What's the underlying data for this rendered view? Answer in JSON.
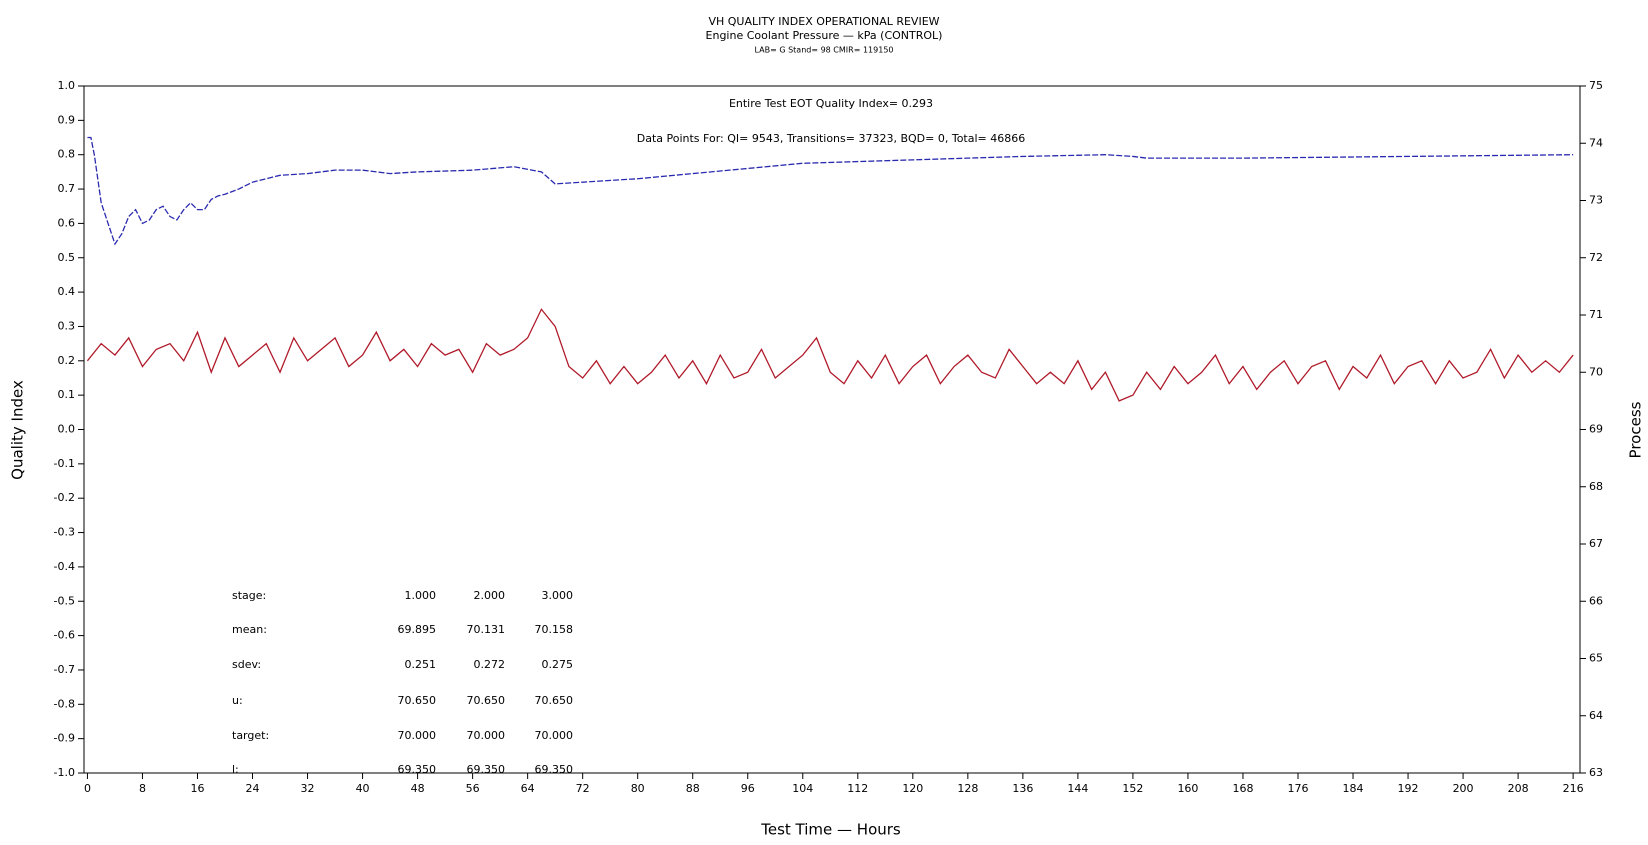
{
  "chart_data": {
    "type": "line",
    "title": "VH QUALITY INDEX OPERATIONAL REVIEW",
    "subtitle": "Engine Coolant Pressure — kPa (CONTROL)",
    "caption": "LAB= G Stand= 98 CMIR= 119150",
    "annotations": [
      "Entire Test EOT Quality Index=   0.293",
      "Data Points For: QI=  9543, Transitions= 37323, BQD=    0, Total= 46866"
    ],
    "xlabel": "Test Time — Hours",
    "ylabel": "Quality Index",
    "y2label": "Process",
    "xlim": [
      -0.5,
      217
    ],
    "ylim": [
      -1.0,
      1.0
    ],
    "y2lim": [
      63,
      75
    ],
    "xticks": [
      0,
      8,
      16,
      24,
      32,
      40,
      48,
      56,
      64,
      72,
      80,
      88,
      96,
      104,
      112,
      120,
      128,
      136,
      144,
      152,
      160,
      168,
      176,
      184,
      192,
      200,
      208,
      216
    ],
    "yticks": [
      {
        "value": -1.0,
        "label": "-1.0"
      },
      -0.9,
      -0.8,
      -0.7,
      -0.6,
      -0.5,
      -0.4,
      -0.3,
      -0.2,
      -0.1,
      {
        "value": 0.0,
        "label": "0.0"
      },
      0.1,
      0.2,
      0.3,
      0.4,
      0.5,
      0.6,
      0.7,
      0.8,
      0.9,
      {
        "value": 1.0,
        "label": "1.0"
      }
    ],
    "y2ticks": [
      63,
      64,
      65,
      66,
      67,
      68,
      69,
      70,
      71,
      72,
      73,
      74,
      75
    ],
    "series": [
      {
        "color": "#2a2ab0",
        "dashed": true,
        "x": [
          0,
          0.5,
          1,
          2,
          3,
          4,
          5,
          6,
          7,
          8,
          9,
          10,
          11,
          12,
          13,
          14,
          15,
          16,
          17,
          18,
          19,
          20,
          22,
          24,
          28,
          32,
          36,
          40,
          44,
          48,
          56,
          62,
          66,
          68,
          72,
          80,
          88,
          96,
          104,
          112,
          120,
          128,
          136,
          148,
          152,
          154,
          168,
          216
        ],
        "values": [
          0.85,
          0.85,
          0.8,
          0.66,
          0.6,
          0.54,
          0.57,
          0.62,
          0.64,
          0.6,
          0.61,
          0.64,
          0.65,
          0.62,
          0.61,
          0.64,
          0.66,
          0.64,
          0.64,
          0.67,
          0.68,
          0.685,
          0.7,
          0.72,
          0.74,
          0.745,
          0.755,
          0.755,
          0.745,
          0.75,
          0.755,
          0.765,
          0.75,
          0.715,
          0.72,
          0.73,
          0.745,
          0.76,
          0.775,
          0.78,
          0.785,
          0.79,
          0.795,
          0.8,
          0.795,
          0.79,
          0.79,
          0.8
        ]
      },
      {
        "color": "#b01a2a",
        "axis": "y2",
        "x": [
          0,
          2,
          4,
          6,
          8,
          10,
          12,
          14,
          16,
          18,
          20,
          22,
          24,
          26,
          28,
          30,
          32,
          34,
          36,
          38,
          40,
          42,
          44,
          46,
          48,
          50,
          52,
          54,
          56,
          58,
          60,
          62,
          64,
          66,
          68,
          70,
          72,
          74,
          76,
          78,
          80,
          82,
          84,
          86,
          88,
          90,
          92,
          94,
          96,
          98,
          100,
          102,
          104,
          106,
          108,
          110,
          112,
          114,
          116,
          118,
          120,
          122,
          124,
          126,
          128,
          130,
          132,
          134,
          136,
          138,
          140,
          142,
          144,
          146,
          148,
          150,
          152,
          154,
          156,
          158,
          160,
          162,
          164,
          166,
          168,
          170,
          172,
          174,
          176,
          178,
          180,
          182,
          184,
          186,
          188,
          190,
          192,
          194,
          196,
          198,
          200,
          202,
          204,
          206,
          208,
          210,
          212,
          214,
          216
        ],
        "values": [
          70.2,
          70.5,
          70.3,
          70.6,
          70.1,
          70.4,
          70.5,
          70.2,
          70.7,
          70.0,
          70.6,
          70.1,
          70.3,
          70.5,
          70.0,
          70.6,
          70.2,
          70.4,
          70.6,
          70.1,
          70.3,
          70.7,
          70.2,
          70.4,
          70.1,
          70.5,
          70.3,
          70.4,
          70.0,
          70.5,
          70.3,
          70.4,
          70.6,
          71.1,
          70.8,
          70.1,
          69.9,
          70.2,
          69.8,
          70.1,
          69.8,
          70.0,
          70.3,
          69.9,
          70.2,
          69.8,
          70.3,
          69.9,
          70.0,
          70.4,
          69.9,
          70.1,
          70.3,
          70.6,
          70.0,
          69.8,
          70.2,
          69.9,
          70.3,
          69.8,
          70.1,
          70.3,
          69.8,
          70.1,
          70.3,
          70.0,
          69.9,
          70.4,
          70.1,
          69.8,
          70.0,
          69.8,
          70.2,
          69.7,
          70.0,
          69.5,
          69.6,
          70.0,
          69.7,
          70.1,
          69.8,
          70.0,
          70.3,
          69.8,
          70.1,
          69.7,
          70.0,
          70.2,
          69.8,
          70.1,
          70.2,
          69.7,
          70.1,
          69.9,
          70.3,
          69.8,
          70.1,
          70.2,
          69.8,
          70.2,
          69.9,
          70.0,
          70.4,
          69.9,
          70.3,
          70.0,
          70.2,
          70.0,
          70.3
        ]
      }
    ],
    "stats_table": {
      "rows": [
        {
          "label": "stage:",
          "values": [
            "1.000",
            "2.000",
            "3.000"
          ]
        },
        {
          "label": "mean:",
          "values": [
            "69.895",
            "70.131",
            "70.158"
          ]
        },
        {
          "label": "sdev:",
          "values": [
            "0.251",
            "0.272",
            "0.275"
          ]
        },
        {
          "label": "u:",
          "values": [
            "70.650",
            "70.650",
            "70.650"
          ]
        },
        {
          "label": "target:",
          "values": [
            "70.000",
            "70.000",
            "70.000"
          ]
        },
        {
          "label": "l:",
          "values": [
            "69.350",
            "69.350",
            "69.350"
          ]
        }
      ]
    }
  }
}
